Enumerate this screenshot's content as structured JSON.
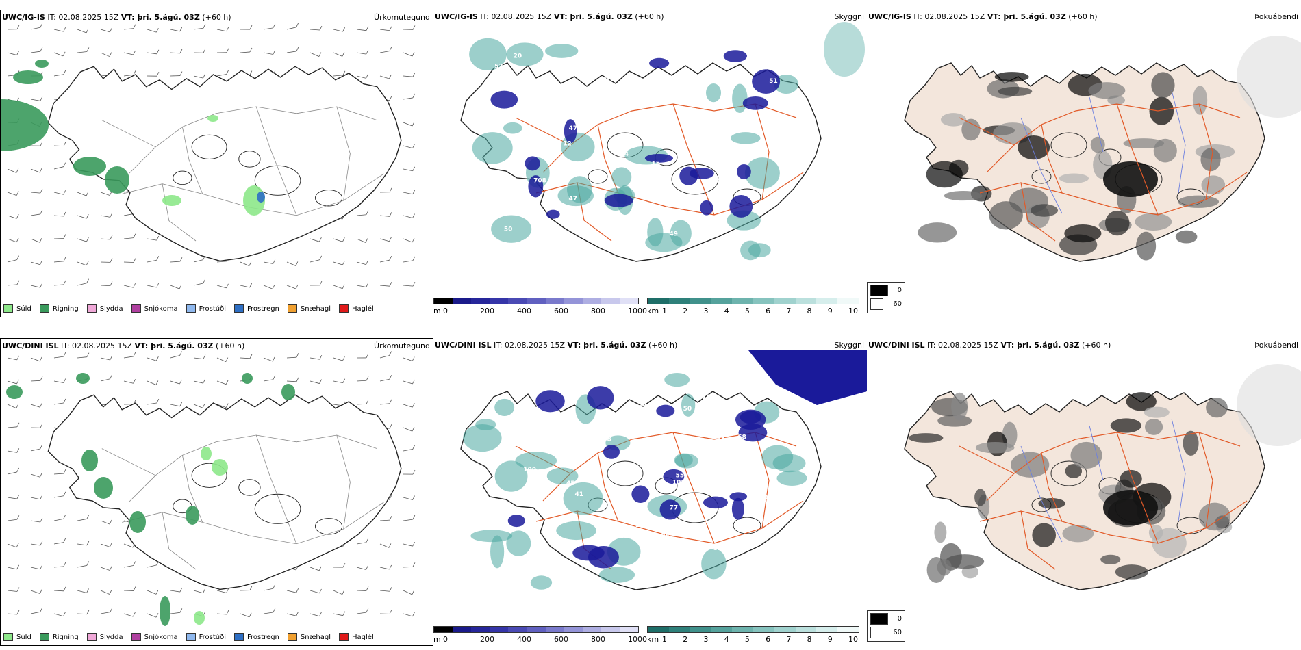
{
  "rows": [
    {
      "precip": {
        "model": "UWC/IG-IS",
        "meta": " IT: 02.08.2025 15Z ",
        "vt_label": "VT: þri. 5.ágú. 03Z",
        "offset": " (+60 h)",
        "label": "Úrkomutegund"
      },
      "cloud": {
        "model": "UWC/IG-IS",
        "meta": " IT: 02.08.2025 15Z ",
        "vt_label": "VT: þri. 5.ágú. 03Z",
        "offset": " (+60 h)",
        "label": "Skyggni",
        "numbers": [
          "708",
          "72",
          "81",
          "15",
          "229",
          "47",
          "37",
          "49",
          "12",
          "55",
          "24",
          "277",
          "50",
          "36",
          "44",
          "20",
          "930",
          "227",
          "68",
          "71",
          "51",
          "60",
          "36",
          "52",
          "53",
          "20",
          "47",
          "54"
        ]
      },
      "fog": {
        "model": "UWC/IG-IS",
        "meta": " IT: 02.08.2025 15Z ",
        "vt_label": "VT: þri. 5.ágú. 03Z",
        "offset": " (+60 h)",
        "label": "Þokuábendi"
      }
    },
    {
      "precip": {
        "model": "UWC/DINI ISL",
        "meta": " IT: 02.08.2025 15Z ",
        "vt_label": "VT: þri. 5.ágú. 03Z",
        "offset": " (+60 h)",
        "label": "Úrkomutegund"
      },
      "cloud": {
        "model": "UWC/DINI ISL",
        "meta": " IT: 02.08.2025 15Z ",
        "vt_label": "VT: þri. 5.ágú. 03Z",
        "offset": " (+60 h)",
        "label": "Skyggni",
        "numbers": [
          "107",
          "76",
          "77",
          "75",
          "79",
          "71",
          "82",
          "105",
          "44",
          "50",
          "100",
          "45",
          "41",
          "310",
          "119",
          "109",
          "58",
          "68",
          "59",
          "47",
          "55",
          "32",
          "77",
          "121",
          "67",
          "81"
        ]
      },
      "fog": {
        "model": "UWC/DINI ISL",
        "meta": " IT: 02.08.2025 15Z ",
        "vt_label": "VT: þri. 5.ágú. 03Z",
        "offset": " (+60 h)",
        "label": "Þokuábendi"
      }
    }
  ],
  "precip_legend": [
    {
      "label": "Súld",
      "color": "#8de88a"
    },
    {
      "label": "Rigning",
      "color": "#3a9a5c"
    },
    {
      "label": "Slydda",
      "color": "#f0a8d8"
    },
    {
      "label": "Snjókoma",
      "color": "#b040a0"
    },
    {
      "label": "Frostúði",
      "color": "#8fb8ee"
    },
    {
      "label": "Frostregn",
      "color": "#2e6fc4"
    },
    {
      "label": "Snæhagl",
      "color": "#f0a030"
    },
    {
      "label": "Haglél",
      "color": "#e01a1a"
    }
  ],
  "cloud_base_bar": {
    "unit": "m",
    "ticks": [
      "0",
      "200",
      "400",
      "600",
      "800",
      "1000"
    ]
  },
  "visibility_bar": {
    "unit": "km",
    "ticks": [
      "1",
      "2",
      "3",
      "4",
      "5",
      "6",
      "7",
      "8",
      "9",
      "10"
    ]
  },
  "fog_scale": [
    "0",
    "60"
  ],
  "colors": {
    "land": "#f3e6dc",
    "road": "#e25a28",
    "coast": "#222222",
    "cloud_dark": "#1a1a9a",
    "vis": "#4aa8a0"
  }
}
